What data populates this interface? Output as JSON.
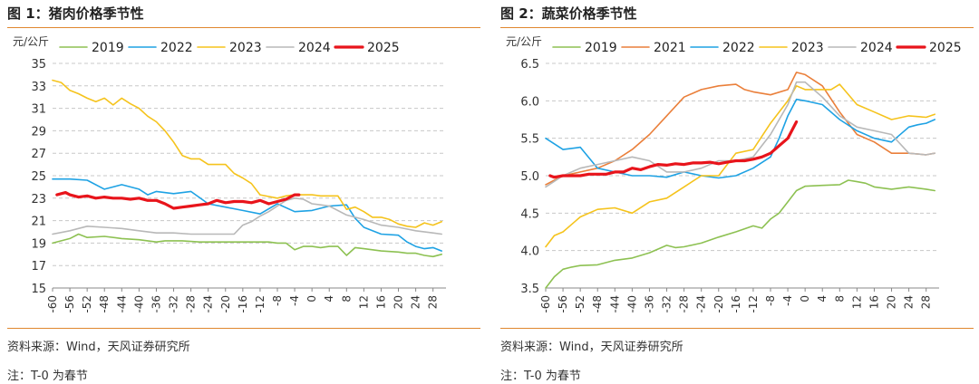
{
  "chart_data": [
    {
      "type": "line",
      "title": "图 1：猪肉价格季节性",
      "ylabel": "元/公斤",
      "xlabel": "",
      "ylim": [
        15,
        35
      ],
      "yticks": [
        15,
        17,
        19,
        21,
        23,
        25,
        27,
        29,
        31,
        33,
        35
      ],
      "xlim": [
        -60,
        31
      ],
      "xticks": [
        -60,
        -56,
        -52,
        -48,
        -44,
        -40,
        -36,
        -32,
        -28,
        -24,
        -20,
        -16,
        -12,
        -8,
        -4,
        0,
        4,
        8,
        12,
        16,
        20,
        24,
        28
      ],
      "grid": "horizontal-dashed",
      "legend_position": "top",
      "source": "资料来源：Wind，天风证券研究所",
      "note": "注：T-0 为春节",
      "series": [
        {
          "name": "2019",
          "color": "#8dc152",
          "width": 1.6,
          "x": [
            -60,
            -56,
            -54,
            -52,
            -48,
            -44,
            -40,
            -36,
            -34,
            -30,
            -26,
            -22,
            -18,
            -14,
            -12,
            -10,
            -8,
            -6,
            -4,
            -2,
            0,
            2,
            4,
            6,
            8,
            10,
            12,
            16,
            20,
            22,
            24,
            26,
            28,
            30
          ],
          "y": [
            19.0,
            19.4,
            19.8,
            19.5,
            19.6,
            19.4,
            19.3,
            19.1,
            19.2,
            19.2,
            19.1,
            19.1,
            19.1,
            19.1,
            19.1,
            19.1,
            19.0,
            19.0,
            18.4,
            18.7,
            18.7,
            18.6,
            18.7,
            18.7,
            17.9,
            18.6,
            18.5,
            18.3,
            18.2,
            18.1,
            18.1,
            17.9,
            17.8,
            18.0
          ]
        },
        {
          "name": "2022",
          "color": "#1ea2e4",
          "width": 1.6,
          "x": [
            -60,
            -56,
            -52,
            -48,
            -44,
            -40,
            -38,
            -36,
            -32,
            -28,
            -24,
            -20,
            -16,
            -12,
            -8,
            -4,
            0,
            4,
            8,
            10,
            12,
            16,
            20,
            22,
            24,
            26,
            28,
            30
          ],
          "y": [
            24.7,
            24.7,
            24.6,
            23.8,
            24.2,
            23.8,
            23.3,
            23.6,
            23.4,
            23.6,
            22.5,
            22.2,
            21.9,
            21.6,
            22.5,
            21.8,
            21.9,
            22.3,
            22.4,
            21.2,
            20.4,
            19.8,
            19.7,
            19.1,
            18.7,
            18.5,
            18.6,
            18.3
          ]
        },
        {
          "name": "2023",
          "color": "#f5c31c",
          "width": 1.6,
          "x": [
            -60,
            -58,
            -56,
            -54,
            -52,
            -50,
            -48,
            -46,
            -44,
            -42,
            -40,
            -38,
            -36,
            -34,
            -32,
            -30,
            -28,
            -26,
            -24,
            -20,
            -18,
            -16,
            -14,
            -12,
            -8,
            -6,
            -4,
            -2,
            0,
            2,
            4,
            6,
            8,
            10,
            12,
            14,
            16,
            18,
            20,
            22,
            24,
            26,
            28,
            30
          ],
          "y": [
            33.5,
            33.3,
            32.6,
            32.3,
            31.9,
            31.6,
            31.9,
            31.3,
            31.9,
            31.4,
            31.0,
            30.3,
            29.8,
            29.0,
            28.0,
            26.8,
            26.5,
            26.5,
            26.0,
            26.0,
            25.2,
            24.8,
            24.3,
            23.3,
            23.0,
            23.2,
            23.3,
            23.3,
            23.3,
            23.2,
            23.2,
            23.2,
            22.0,
            22.2,
            21.8,
            21.3,
            21.3,
            21.1,
            20.7,
            20.5,
            20.4,
            20.8,
            20.6,
            20.9
          ]
        },
        {
          "name": "2024",
          "color": "#b8b8b8",
          "width": 1.6,
          "x": [
            -60,
            -56,
            -52,
            -48,
            -44,
            -40,
            -36,
            -32,
            -28,
            -24,
            -20,
            -18,
            -16,
            -14,
            -12,
            -10,
            -8,
            -6,
            -4,
            -2,
            0,
            2,
            4,
            8,
            12,
            16,
            20,
            24,
            28,
            30
          ],
          "y": [
            19.8,
            20.1,
            20.5,
            20.4,
            20.3,
            20.1,
            19.9,
            19.9,
            19.8,
            19.8,
            19.8,
            19.8,
            20.6,
            20.9,
            21.4,
            21.8,
            22.3,
            22.8,
            23.0,
            22.9,
            22.5,
            22.4,
            22.3,
            21.5,
            21.1,
            20.6,
            20.4,
            20.1,
            19.9,
            19.8
          ]
        },
        {
          "name": "2025",
          "color": "#e8141b",
          "width": 3.2,
          "x": [
            -59,
            -57,
            -56,
            -54,
            -52,
            -50,
            -48,
            -46,
            -44,
            -42,
            -40,
            -38,
            -36,
            -34,
            -32,
            -30,
            -28,
            -26,
            -24,
            -22,
            -20,
            -18,
            -16,
            -14,
            -12,
            -10,
            -8,
            -6,
            -4,
            -3
          ],
          "y": [
            23.3,
            23.5,
            23.3,
            23.1,
            23.2,
            23.0,
            23.1,
            23.0,
            23.0,
            22.9,
            23.0,
            22.8,
            22.8,
            22.5,
            22.1,
            22.2,
            22.3,
            22.4,
            22.5,
            22.8,
            22.6,
            22.7,
            22.7,
            22.6,
            22.8,
            22.5,
            22.7,
            22.9,
            23.3,
            23.3
          ]
        }
      ]
    },
    {
      "type": "line",
      "title": "图 2：蔬菜价格季节性",
      "ylabel": "元/公斤",
      "xlabel": "",
      "ylim": [
        3.5,
        6.5
      ],
      "yticks": [
        3.5,
        4.0,
        4.5,
        5.0,
        5.5,
        6.0,
        6.5
      ],
      "xlim": [
        -60,
        31
      ],
      "xticks": [
        -60,
        -56,
        -52,
        -48,
        -44,
        -40,
        -36,
        -32,
        -28,
        -24,
        -20,
        -16,
        -12,
        -8,
        -4,
        0,
        4,
        8,
        12,
        16,
        20,
        24,
        28
      ],
      "grid": "horizontal-dashed",
      "legend_position": "top",
      "source": "资料来源：Wind，天风证券研究所",
      "note": "注：T-0 为春节",
      "series": [
        {
          "name": "2019",
          "color": "#8dc152",
          "width": 1.6,
          "x": [
            -60,
            -58,
            -56,
            -54,
            -52,
            -48,
            -44,
            -40,
            -36,
            -32,
            -30,
            -28,
            -24,
            -20,
            -16,
            -12,
            -10,
            -8,
            -6,
            -4,
            -2,
            0,
            4,
            8,
            10,
            12,
            14,
            16,
            20,
            24,
            28,
            30
          ],
          "y": [
            3.5,
            3.65,
            3.75,
            3.78,
            3.8,
            3.81,
            3.87,
            3.9,
            3.97,
            4.07,
            4.04,
            4.05,
            4.1,
            4.18,
            4.25,
            4.33,
            4.3,
            4.42,
            4.5,
            4.65,
            4.8,
            4.86,
            4.87,
            4.88,
            4.94,
            4.92,
            4.9,
            4.85,
            4.82,
            4.85,
            4.82,
            4.8
          ]
        },
        {
          "name": "2021",
          "color": "#ea7f3a",
          "width": 1.6,
          "x": [
            -60,
            -56,
            -52,
            -48,
            -44,
            -40,
            -36,
            -32,
            -28,
            -24,
            -20,
            -16,
            -14,
            -12,
            -8,
            -4,
            -2,
            0,
            4,
            8,
            12,
            16,
            20,
            22,
            24,
            28,
            30
          ],
          "y": [
            4.88,
            5.0,
            5.05,
            5.1,
            5.2,
            5.35,
            5.55,
            5.8,
            6.05,
            6.15,
            6.2,
            6.22,
            6.15,
            6.12,
            6.08,
            6.15,
            6.38,
            6.35,
            6.2,
            5.85,
            5.55,
            5.45,
            5.3,
            5.3,
            5.3,
            5.28,
            5.3
          ]
        },
        {
          "name": "2022",
          "color": "#1ea2e4",
          "width": 1.6,
          "x": [
            -60,
            -56,
            -52,
            -48,
            -44,
            -40,
            -36,
            -32,
            -28,
            -24,
            -20,
            -16,
            -12,
            -8,
            -6,
            -4,
            -2,
            0,
            4,
            8,
            12,
            16,
            20,
            24,
            26,
            28,
            30
          ],
          "y": [
            5.5,
            5.35,
            5.38,
            5.1,
            5.05,
            5.0,
            5.0,
            4.98,
            5.05,
            5.0,
            4.97,
            5.0,
            5.1,
            5.25,
            5.5,
            5.8,
            6.02,
            6.0,
            5.95,
            5.75,
            5.6,
            5.5,
            5.45,
            5.65,
            5.68,
            5.7,
            5.75
          ]
        },
        {
          "name": "2023",
          "color": "#f5c31c",
          "width": 1.6,
          "x": [
            -60,
            -58,
            -56,
            -52,
            -48,
            -44,
            -40,
            -36,
            -32,
            -28,
            -24,
            -20,
            -16,
            -12,
            -8,
            -4,
            -2,
            0,
            4,
            6,
            8,
            12,
            16,
            20,
            24,
            28,
            30
          ],
          "y": [
            4.05,
            4.2,
            4.25,
            4.45,
            4.55,
            4.57,
            4.5,
            4.65,
            4.7,
            4.85,
            5.0,
            5.0,
            5.3,
            5.35,
            5.7,
            6.0,
            6.2,
            6.15,
            6.15,
            6.15,
            6.22,
            5.95,
            5.85,
            5.75,
            5.8,
            5.78,
            5.82
          ]
        },
        {
          "name": "2024",
          "color": "#b8b8b8",
          "width": 1.6,
          "x": [
            -60,
            -56,
            -52,
            -48,
            -44,
            -40,
            -36,
            -32,
            -28,
            -24,
            -20,
            -16,
            -12,
            -8,
            -4,
            -2,
            0,
            4,
            8,
            12,
            16,
            20,
            24,
            28,
            30
          ],
          "y": [
            4.85,
            5.0,
            5.1,
            5.15,
            5.2,
            5.25,
            5.2,
            5.05,
            5.05,
            5.1,
            5.2,
            5.2,
            5.25,
            5.55,
            5.95,
            6.25,
            6.25,
            6.05,
            5.8,
            5.65,
            5.6,
            5.55,
            5.3,
            5.28,
            5.3
          ]
        },
        {
          "name": "2025",
          "color": "#e8141b",
          "width": 3.2,
          "x": [
            -59,
            -58,
            -56,
            -54,
            -52,
            -50,
            -48,
            -46,
            -44,
            -42,
            -40,
            -38,
            -36,
            -34,
            -32,
            -30,
            -28,
            -26,
            -24,
            -22,
            -20,
            -18,
            -16,
            -14,
            -12,
            -10,
            -8,
            -6,
            -4,
            -2
          ],
          "y": [
            5.0,
            4.98,
            5.0,
            5.0,
            5.0,
            5.02,
            5.02,
            5.02,
            5.05,
            5.05,
            5.1,
            5.08,
            5.12,
            5.15,
            5.14,
            5.16,
            5.15,
            5.17,
            5.17,
            5.18,
            5.16,
            5.18,
            5.2,
            5.2,
            5.22,
            5.25,
            5.3,
            5.4,
            5.5,
            5.72
          ]
        }
      ]
    }
  ]
}
